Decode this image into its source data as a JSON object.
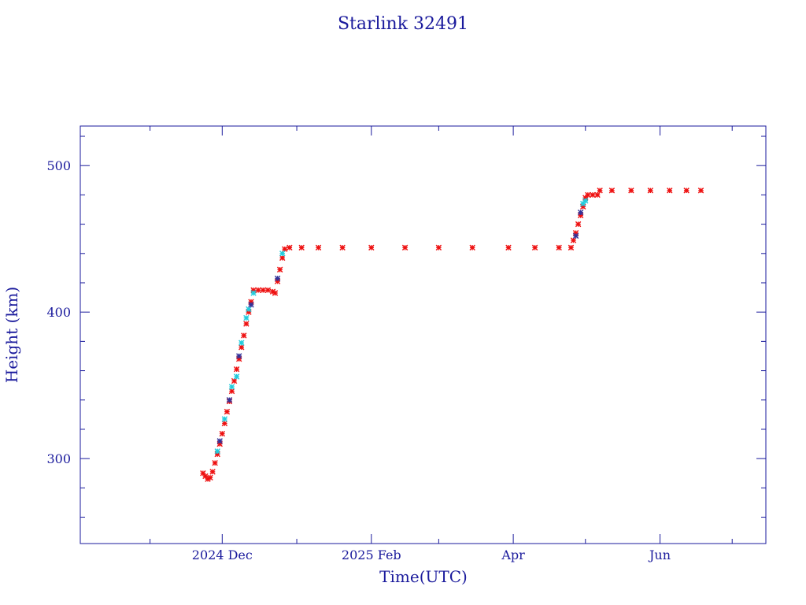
{
  "chart_data": {
    "type": "scatter",
    "title": "Starlink 32491",
    "xlabel": "Time(UTC)",
    "ylabel": "Height (km)",
    "x_range": [
      "2024-10-03",
      "2025-07-15"
    ],
    "ylim": [
      242,
      527
    ],
    "x_major_ticks": [
      {
        "date": "2024-12-01",
        "label": "2024 Dec"
      },
      {
        "date": "2025-02-01",
        "label": "2025 Feb"
      },
      {
        "date": "2025-04-01",
        "label": "Apr"
      },
      {
        "date": "2025-06-01",
        "label": "Jun"
      }
    ],
    "x_minor_ticks": [
      "2024-11-01",
      "2025-01-01",
      "2025-03-01",
      "2025-05-01",
      "2025-07-01"
    ],
    "y_major_ticks": [
      300,
      400,
      500
    ],
    "y_minor_ticks": [
      260,
      280,
      320,
      340,
      360,
      380,
      420,
      440,
      460,
      480,
      520
    ],
    "colors": {
      "axis": "#1a1a9c",
      "main": "#ee1111",
      "secondary": "#22ccdd",
      "dark": "#333399"
    },
    "series": [
      {
        "marker_color": "#ee1111",
        "points": [
          [
            "2024-11-23",
            290
          ],
          [
            "2024-11-24",
            288
          ],
          [
            "2024-11-25",
            286
          ],
          [
            "2024-11-26",
            287
          ],
          [
            "2024-11-27",
            291
          ],
          [
            "2024-11-28",
            297
          ],
          [
            "2024-11-29",
            303
          ],
          [
            "2024-11-30",
            310
          ],
          [
            "2024-12-01",
            317
          ],
          [
            "2024-12-02",
            324
          ],
          [
            "2024-12-03",
            332
          ],
          [
            "2024-12-04",
            339
          ],
          [
            "2024-12-05",
            346
          ],
          [
            "2024-12-06",
            353
          ],
          [
            "2024-12-07",
            361
          ],
          [
            "2024-12-08",
            368
          ],
          [
            "2024-12-09",
            376
          ],
          [
            "2024-12-10",
            384
          ],
          [
            "2024-12-11",
            392
          ],
          [
            "2024-12-12",
            400
          ],
          [
            "2024-12-13",
            407
          ],
          [
            "2024-12-14",
            415
          ],
          [
            "2024-12-16",
            415
          ],
          [
            "2024-12-18",
            415
          ],
          [
            "2024-12-20",
            415
          ],
          [
            "2024-12-22",
            414
          ],
          [
            "2024-12-23",
            413
          ],
          [
            "2024-12-24",
            421
          ],
          [
            "2024-12-25",
            429
          ],
          [
            "2024-12-26",
            437
          ],
          [
            "2024-12-27",
            443
          ],
          [
            "2024-12-29",
            444
          ],
          [
            "2025-01-03",
            444
          ],
          [
            "2025-01-10",
            444
          ],
          [
            "2025-01-20",
            444
          ],
          [
            "2025-02-01",
            444
          ],
          [
            "2025-02-15",
            444
          ],
          [
            "2025-03-01",
            444
          ],
          [
            "2025-03-15",
            444
          ],
          [
            "2025-03-30",
            444
          ],
          [
            "2025-04-10",
            444
          ],
          [
            "2025-04-20",
            444
          ],
          [
            "2025-04-25",
            444
          ],
          [
            "2025-04-26",
            449
          ],
          [
            "2025-04-27",
            454
          ],
          [
            "2025-04-28",
            460
          ],
          [
            "2025-04-29",
            466
          ],
          [
            "2025-04-30",
            472
          ],
          [
            "2025-05-01",
            478
          ],
          [
            "2025-05-02",
            480
          ],
          [
            "2025-05-04",
            480
          ],
          [
            "2025-05-06",
            480
          ],
          [
            "2025-05-07",
            483
          ],
          [
            "2025-05-12",
            483
          ],
          [
            "2025-05-20",
            483
          ],
          [
            "2025-05-28",
            483
          ],
          [
            "2025-06-05",
            483
          ],
          [
            "2025-06-12",
            483
          ],
          [
            "2025-06-18",
            483
          ]
        ]
      },
      {
        "marker_color": "#22ccdd",
        "points": [
          [
            "2024-11-29",
            305
          ],
          [
            "2024-12-02",
            327
          ],
          [
            "2024-12-05",
            349
          ],
          [
            "2024-12-07",
            356
          ],
          [
            "2024-12-09",
            379
          ],
          [
            "2024-12-11",
            396
          ],
          [
            "2024-12-12",
            402
          ],
          [
            "2024-12-14",
            413
          ],
          [
            "2024-12-26",
            440
          ],
          [
            "2025-04-30",
            474
          ],
          [
            "2025-05-01",
            476
          ]
        ]
      },
      {
        "marker_color": "#333399",
        "points": [
          [
            "2024-11-30",
            312
          ],
          [
            "2024-12-04",
            340
          ],
          [
            "2024-12-08",
            370
          ],
          [
            "2024-12-13",
            405
          ],
          [
            "2024-12-24",
            423
          ],
          [
            "2025-04-27",
            452
          ],
          [
            "2025-04-29",
            468
          ]
        ]
      }
    ]
  }
}
